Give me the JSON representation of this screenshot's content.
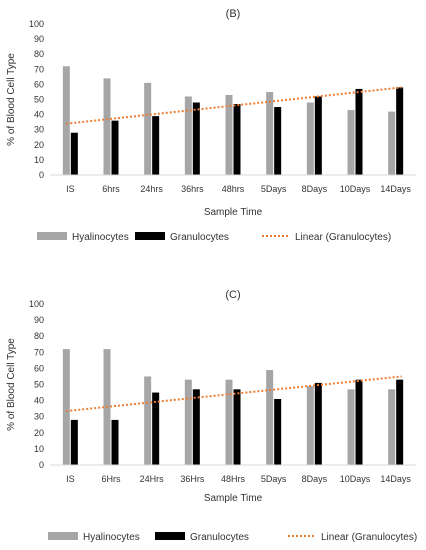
{
  "chart_data": [
    {
      "type": "bar",
      "title": "(B)",
      "xlabel": "Sample Time",
      "ylabel": "% of Blood Cell Type",
      "ylim": [
        0,
        100
      ],
      "yticks": [
        0,
        10,
        20,
        30,
        40,
        50,
        60,
        70,
        80,
        90,
        100
      ],
      "categories": [
        "IS",
        "6hrs",
        "24hrs",
        "36hrs",
        "48hrs",
        "5Days",
        "8Days",
        "10Days",
        "14Days"
      ],
      "series": [
        {
          "name": "Hyalinocytes",
          "color": "#a6a6a6",
          "values": [
            72,
            64,
            61,
            52,
            53,
            55,
            48,
            43,
            42
          ]
        },
        {
          "name": "Granulocytes",
          "color": "#000000",
          "values": [
            28,
            36,
            39,
            48,
            47,
            45,
            52,
            57,
            58
          ]
        }
      ],
      "trendline": {
        "name": "Linear (Granulocytes)",
        "color": "#ed7d31",
        "start": 34,
        "end": 58
      },
      "legend_position": "bottom"
    },
    {
      "type": "bar",
      "title": "(C)",
      "xlabel": "Sample Time",
      "ylabel": "% of Blood Cell Type",
      "ylim": [
        0,
        100
      ],
      "yticks": [
        0,
        10,
        20,
        30,
        40,
        50,
        60,
        70,
        80,
        90,
        100
      ],
      "categories": [
        "IS",
        "6Hrs",
        "24Hrs",
        "36Hrs",
        "48Hrs",
        "5Days",
        "8Days",
        "10Days",
        "14Days"
      ],
      "series": [
        {
          "name": "Hyalinocytes",
          "color": "#a6a6a6",
          "values": [
            72,
            72,
            55,
            53,
            53,
            59,
            49,
            47,
            47
          ]
        },
        {
          "name": "Granulocytes",
          "color": "#000000",
          "values": [
            28,
            28,
            45,
            47,
            47,
            41,
            51,
            53,
            53
          ]
        }
      ],
      "trendline": {
        "name": "Linear (Granulocytes)",
        "color": "#ed7d31",
        "start": 33.5,
        "end": 55
      },
      "legend_position": "bottom"
    }
  ]
}
